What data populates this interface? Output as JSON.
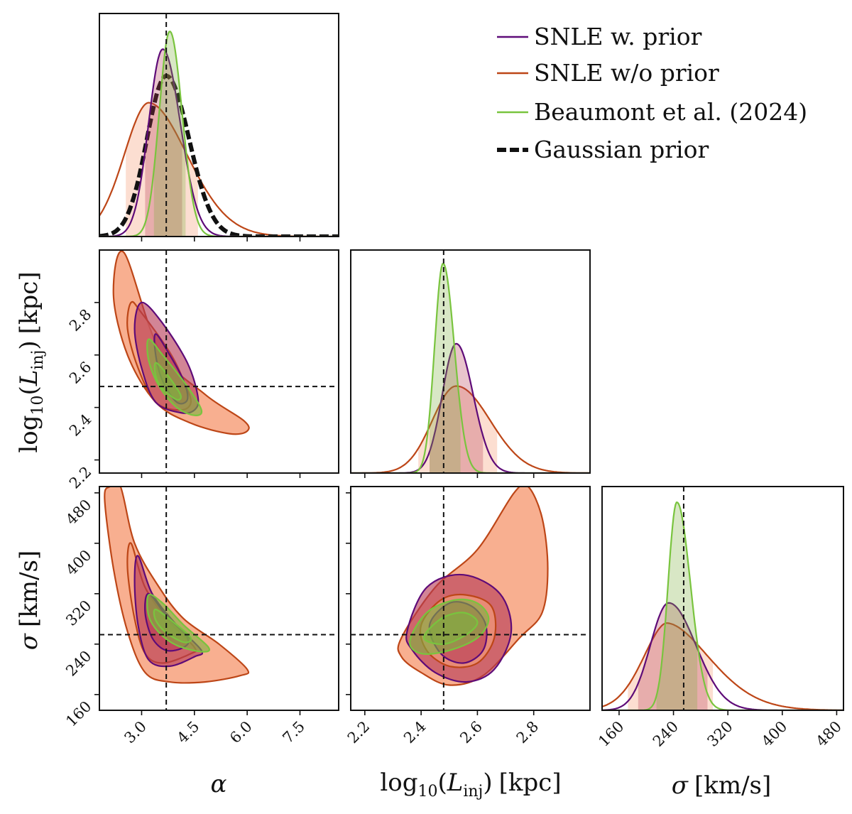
{
  "colors": {
    "snle_prior": "#5e0b78",
    "snle_noprior": "#bd4617",
    "beaumont": "#79c43e",
    "gaussian": "#111111",
    "fill_noprior": "#f7a17c",
    "fill_prior": "#b73a56",
    "fill_beaumont": "#7fb040",
    "truth": "#111111"
  },
  "legend": {
    "snle_prior": "SNLE w. prior",
    "snle_noprior": "SNLE w/o prior",
    "beaumont": "Beaumont et al. (2024)",
    "gaussian": "Gaussian prior"
  },
  "chart_data": {
    "type": "corner",
    "params": [
      {
        "name": "alpha",
        "label_text": "α",
        "range": [
          1.8,
          8.6
        ],
        "ticks": [
          3.0,
          4.5,
          6.0,
          7.5
        ],
        "tick_labels": [
          "3.0",
          "4.5",
          "6.0",
          "7.5"
        ],
        "truth": 3.7
      },
      {
        "name": "log10_Linj",
        "label_text": "log10(Linj) [kpc]",
        "range": [
          2.15,
          3.0
        ],
        "ticks": [
          2.2,
          2.4,
          2.6,
          2.8
        ],
        "tick_labels": [
          "2.2",
          "2.4",
          "2.6",
          "2.8"
        ],
        "truth": 2.48
      },
      {
        "name": "sigma",
        "label_text": "σ [km/s]",
        "range": [
          135,
          490
        ],
        "ticks": [
          160,
          240,
          320,
          400,
          480
        ],
        "tick_labels": [
          "160",
          "240",
          "320",
          "400",
          "480"
        ],
        "truth": 255
      }
    ],
    "axis_labels": {
      "alpha": "α",
      "linj_prefix": "log",
      "linj_sub": "10",
      "linj_open": "(",
      "linj_L": "L",
      "linj_inj": "inj",
      "linj_close": ")",
      "linj_unit": "[kpc]",
      "sigma_sym": "σ",
      "sigma_unit": "[km/s]"
    },
    "marginals": [
      {
        "param": "alpha",
        "curves": [
          {
            "series": "snle_noprior",
            "peak_x": 3.2,
            "peak_y": 0.6,
            "sd_left": 0.7,
            "sd_right": 1.1,
            "p": 1.9,
            "band": [
              2.55,
              4.6
            ]
          },
          {
            "series": "gaussian",
            "peak_x": 3.7,
            "peak_y": 0.72,
            "sd_left": 0.55,
            "sd_right": 0.65,
            "p": 2.0,
            "band": null
          },
          {
            "series": "snle_prior",
            "peak_x": 3.6,
            "peak_y": 0.84,
            "sd_left": 0.4,
            "sd_right": 0.5,
            "p": 2.0,
            "band": [
              3.1,
              4.15
            ]
          },
          {
            "series": "beaumont",
            "peak_x": 3.8,
            "peak_y": 0.92,
            "sd_left": 0.3,
            "sd_right": 0.35,
            "p": 2.0,
            "band": [
              3.35,
              4.25
            ]
          }
        ]
      },
      {
        "param": "log10_Linj",
        "curves": [
          {
            "series": "snle_noprior",
            "peak_x": 2.525,
            "peak_y": 0.39,
            "sd_left": 0.085,
            "sd_right": 0.12,
            "p": 2.0,
            "band": [
              2.39,
              2.67
            ]
          },
          {
            "series": "snle_prior",
            "peak_x": 2.525,
            "peak_y": 0.58,
            "sd_left": 0.05,
            "sd_right": 0.06,
            "p": 2.0,
            "band": [
              2.43,
              2.62
            ]
          },
          {
            "series": "beaumont",
            "peak_x": 2.478,
            "peak_y": 0.94,
            "sd_left": 0.03,
            "sd_right": 0.04,
            "p": 2.0,
            "band": [
              2.43,
              2.54
            ]
          }
        ]
      },
      {
        "param": "sigma",
        "curves": [
          {
            "series": "snle_noprior",
            "peak_x": 230,
            "peak_y": 0.39,
            "sd_left": 34,
            "sd_right": 62,
            "p": 1.8,
            "band": [
              173,
              298
            ]
          },
          {
            "series": "snle_prior",
            "peak_x": 233,
            "peak_y": 0.48,
            "sd_left": 27,
            "sd_right": 40,
            "p": 2.0,
            "band": [
              188,
              290
            ]
          },
          {
            "series": "beaumont",
            "peak_x": 245,
            "peak_y": 0.93,
            "sd_left": 13,
            "sd_right": 20,
            "p": 2.0,
            "band": [
              215,
              275
            ]
          }
        ]
      }
    ],
    "joints": [
      {
        "x_param": "alpha",
        "y_param": "log10_Linj",
        "contours": [
          {
            "series": "snle_noprior",
            "level": "outer",
            "points": [
              [
                2.5,
                2.99
              ],
              [
                3.5,
                2.62
              ],
              [
                4.8,
                2.45
              ],
              [
                5.9,
                2.35
              ],
              [
                6.0,
                2.31
              ],
              [
                5.5,
                2.3
              ],
              [
                4.4,
                2.34
              ],
              [
                3.4,
                2.42
              ],
              [
                2.6,
                2.6
              ],
              [
                2.2,
                2.83
              ]
            ]
          },
          {
            "series": "snle_noprior",
            "level": "inner",
            "points": [
              [
                2.7,
                2.8
              ],
              [
                3.0,
                2.76
              ],
              [
                3.8,
                2.61
              ],
              [
                4.2,
                2.5
              ],
              [
                4.4,
                2.42
              ],
              [
                4.1,
                2.39
              ],
              [
                3.4,
                2.42
              ],
              [
                2.9,
                2.55
              ],
              [
                2.6,
                2.7
              ]
            ]
          },
          {
            "series": "snle_prior",
            "level": "outer",
            "points": [
              [
                3.0,
                2.8
              ],
              [
                3.6,
                2.72
              ],
              [
                4.3,
                2.57
              ],
              [
                4.6,
                2.44
              ],
              [
                4.5,
                2.39
              ],
              [
                4.1,
                2.38
              ],
              [
                3.4,
                2.42
              ],
              [
                3.0,
                2.55
              ],
              [
                2.8,
                2.7
              ]
            ]
          },
          {
            "series": "snle_prior",
            "level": "inner",
            "points": [
              [
                3.4,
                2.68
              ],
              [
                3.8,
                2.6
              ],
              [
                4.2,
                2.5
              ],
              [
                4.3,
                2.43
              ],
              [
                4.0,
                2.42
              ],
              [
                3.6,
                2.5
              ],
              [
                3.4,
                2.6
              ]
            ]
          },
          {
            "series": "beaumont",
            "level": "outer",
            "points": [
              [
                3.2,
                2.66
              ],
              [
                3.6,
                2.6
              ],
              [
                4.3,
                2.48
              ],
              [
                4.7,
                2.39
              ],
              [
                4.5,
                2.37
              ],
              [
                4.0,
                2.4
              ],
              [
                3.5,
                2.48
              ],
              [
                3.2,
                2.58
              ]
            ]
          },
          {
            "series": "beaumont",
            "level": "inner",
            "points": [
              [
                3.4,
                2.57
              ],
              [
                3.7,
                2.53
              ],
              [
                4.1,
                2.45
              ],
              [
                4.0,
                2.43
              ],
              [
                3.6,
                2.47
              ],
              [
                3.4,
                2.52
              ]
            ]
          }
        ]
      },
      {
        "x_param": "alpha",
        "y_param": "sigma",
        "contours": [
          {
            "series": "snle_noprior",
            "level": "outer",
            "points": [
              [
                2.1,
                490
              ],
              [
                2.4,
                490
              ],
              [
                2.8,
                400
              ],
              [
                3.5,
                330
              ],
              [
                4.2,
                280
              ],
              [
                5.2,
                240
              ],
              [
                6.0,
                200
              ],
              [
                5.8,
                190
              ],
              [
                4.8,
                180
              ],
              [
                3.8,
                180
              ],
              [
                3.1,
                195
              ],
              [
                2.6,
                260
              ],
              [
                2.2,
                360
              ],
              [
                1.95,
                470
              ]
            ]
          },
          {
            "series": "snle_noprior",
            "level": "inner",
            "points": [
              [
                2.7,
                400
              ],
              [
                3.1,
                330
              ],
              [
                3.8,
                275
              ],
              [
                4.5,
                235
              ],
              [
                4.4,
                225
              ],
              [
                3.6,
                210
              ],
              [
                3.1,
                225
              ],
              [
                2.8,
                280
              ],
              [
                2.6,
                360
              ]
            ]
          },
          {
            "series": "snle_prior",
            "level": "outer",
            "points": [
              [
                2.9,
                380
              ],
              [
                3.3,
                320
              ],
              [
                4.0,
                270
              ],
              [
                4.7,
                230
              ],
              [
                4.5,
                220
              ],
              [
                3.8,
                205
              ],
              [
                3.2,
                215
              ],
              [
                2.9,
                270
              ],
              [
                2.8,
                340
              ]
            ]
          },
          {
            "series": "snle_prior",
            "level": "inner",
            "points": [
              [
                3.2,
                320
              ],
              [
                3.7,
                285
              ],
              [
                4.3,
                250
              ],
              [
                4.2,
                235
              ],
              [
                3.7,
                230
              ],
              [
                3.3,
                250
              ],
              [
                3.1,
                290
              ]
            ]
          },
          {
            "series": "beaumont",
            "level": "outer",
            "points": [
              [
                3.2,
                318
              ],
              [
                3.6,
                305
              ],
              [
                4.2,
                270
              ],
              [
                4.9,
                235
              ],
              [
                4.7,
                228
              ],
              [
                4.0,
                238
              ],
              [
                3.5,
                258
              ],
              [
                3.2,
                285
              ]
            ]
          },
          {
            "series": "beaumont",
            "level": "inner",
            "points": [
              [
                3.4,
                295
              ],
              [
                3.9,
                275
              ],
              [
                4.4,
                250
              ],
              [
                4.2,
                243
              ],
              [
                3.7,
                258
              ],
              [
                3.4,
                278
              ]
            ]
          }
        ]
      },
      {
        "x_param": "log10_Linj",
        "y_param": "sigma",
        "contours": [
          {
            "series": "snle_noprior",
            "level": "outer",
            "points": [
              [
                2.33,
                250
              ],
              [
                2.45,
                330
              ],
              [
                2.6,
                390
              ],
              [
                2.73,
                480
              ],
              [
                2.78,
                490
              ],
              [
                2.83,
                440
              ],
              [
                2.85,
                360
              ],
              [
                2.83,
                290
              ],
              [
                2.75,
                250
              ],
              [
                2.62,
                190
              ],
              [
                2.5,
                175
              ],
              [
                2.4,
                195
              ],
              [
                2.33,
                220
              ]
            ]
          },
          {
            "series": "snle_prior",
            "level": "outer",
            "points": [
              [
                2.35,
                260
              ],
              [
                2.42,
                330
              ],
              [
                2.55,
                350
              ],
              [
                2.68,
                320
              ],
              [
                2.72,
                260
              ],
              [
                2.66,
                200
              ],
              [
                2.56,
                180
              ],
              [
                2.45,
                195
              ],
              [
                2.37,
                230
              ]
            ]
          },
          {
            "series": "snle_noprior",
            "level": "inner",
            "points": [
              [
                2.4,
                270
              ],
              [
                2.47,
                310
              ],
              [
                2.56,
                318
              ],
              [
                2.65,
                300
              ],
              [
                2.66,
                250
              ],
              [
                2.6,
                210
              ],
              [
                2.5,
                205
              ],
              [
                2.42,
                230
              ]
            ]
          },
          {
            "series": "snle_prior",
            "level": "inner",
            "points": [
              [
                2.43,
                270
              ],
              [
                2.5,
                305
              ],
              [
                2.58,
                300
              ],
              [
                2.63,
                270
              ],
              [
                2.62,
                230
              ],
              [
                2.55,
                210
              ],
              [
                2.47,
                225
              ]
            ]
          },
          {
            "series": "beaumont",
            "level": "outer",
            "points": [
              [
                2.36,
                245
              ],
              [
                2.42,
                290
              ],
              [
                2.52,
                310
              ],
              [
                2.6,
                305
              ],
              [
                2.64,
                280
              ],
              [
                2.6,
                250
              ],
              [
                2.5,
                230
              ],
              [
                2.4,
                225
              ]
            ]
          },
          {
            "series": "beaumont",
            "level": "inner",
            "points": [
              [
                2.41,
                250
              ],
              [
                2.47,
                280
              ],
              [
                2.55,
                290
              ],
              [
                2.6,
                275
              ],
              [
                2.56,
                255
              ],
              [
                2.48,
                240
              ]
            ]
          }
        ]
      }
    ]
  }
}
